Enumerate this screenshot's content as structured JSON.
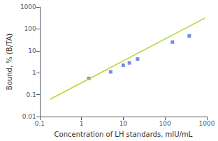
{
  "chart_data": {
    "type": "scatter",
    "xlabel": "Concentration of LH standards, mIU/mL",
    "ylabel": "Bound, % (B/TA)",
    "log": true,
    "grid": false,
    "xlim": [
      0.1,
      1000
    ],
    "ylim": [
      0.01,
      1000
    ],
    "xticks": [
      0.1,
      1,
      10,
      100,
      1000
    ],
    "yticks": [
      0.01,
      0.1,
      1,
      10,
      100,
      1000
    ],
    "series": [
      {
        "type": "scatter",
        "marker": "square",
        "x": [
          1.5,
          5.0,
          10.0,
          14.0,
          22.0,
          150.0,
          380.0
        ],
        "values": [
          0.55,
          1.1,
          2.2,
          2.8,
          4.2,
          25.0,
          48.0
        ]
      },
      {
        "type": "line",
        "line_style": "solid",
        "x": [
          0.18,
          900.0
        ],
        "values": [
          0.06241263,
          312.0632
        ]
      }
    ]
  }
}
